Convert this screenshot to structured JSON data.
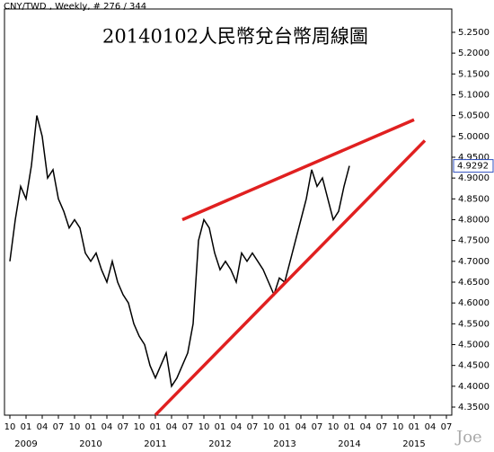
{
  "chart_data": {
    "type": "line",
    "header": "CNY/TWD , Weekly, # 276 / 344",
    "title": "20140102人民幣兌台幣周線圖",
    "watermark": "Joe",
    "color": "#000000",
    "x": [
      "2008-10",
      "2008-11",
      "2008-12",
      "2009-01",
      "2009-02",
      "2009-03",
      "2009-04",
      "2009-05",
      "2009-06",
      "2009-07",
      "2009-08",
      "2009-09",
      "2009-10",
      "2009-11",
      "2009-12",
      "2010-01",
      "2010-02",
      "2010-03",
      "2010-04",
      "2010-05",
      "2010-06",
      "2010-07",
      "2010-08",
      "2010-09",
      "2010-10",
      "2010-11",
      "2010-12",
      "2011-01",
      "2011-02",
      "2011-03",
      "2011-04",
      "2011-05",
      "2011-06",
      "2011-07",
      "2011-08",
      "2011-09",
      "2011-10",
      "2011-11",
      "2011-12",
      "2012-01",
      "2012-02",
      "2012-03",
      "2012-04",
      "2012-05",
      "2012-06",
      "2012-07",
      "2012-08",
      "2012-09",
      "2012-10",
      "2012-11",
      "2012-12",
      "2013-01",
      "2013-02",
      "2013-03",
      "2013-04",
      "2013-05",
      "2013-06",
      "2013-07",
      "2013-08",
      "2013-09",
      "2013-10",
      "2013-11",
      "2013-12",
      "2014-01"
    ],
    "values": [
      4.7,
      4.8,
      4.88,
      4.85,
      4.93,
      5.05,
      5.0,
      4.9,
      4.92,
      4.85,
      4.82,
      4.78,
      4.8,
      4.78,
      4.72,
      4.7,
      4.72,
      4.68,
      4.65,
      4.7,
      4.65,
      4.62,
      4.6,
      4.55,
      4.52,
      4.5,
      4.45,
      4.42,
      4.45,
      4.48,
      4.4,
      4.42,
      4.45,
      4.48,
      4.55,
      4.75,
      4.8,
      4.78,
      4.72,
      4.68,
      4.7,
      4.68,
      4.65,
      4.72,
      4.7,
      4.72,
      4.7,
      4.68,
      4.65,
      4.62,
      4.66,
      4.65,
      4.7,
      4.75,
      4.8,
      4.85,
      4.92,
      4.88,
      4.9,
      4.85,
      4.8,
      4.82,
      4.88,
      4.9292
    ],
    "last_value": 4.9292,
    "xlim": [
      "2008-09",
      "2015-08"
    ],
    "xticks": [
      {
        "value": "2008-10",
        "label": "10"
      },
      {
        "value": "2009-01",
        "label": "01"
      },
      {
        "value": "2009-04",
        "label": "04"
      },
      {
        "value": "2009-07",
        "label": "07"
      },
      {
        "value": "2009-10",
        "label": "10"
      },
      {
        "value": "2010-01",
        "label": "01"
      },
      {
        "value": "2010-04",
        "label": "04"
      },
      {
        "value": "2010-07",
        "label": "07"
      },
      {
        "value": "2010-10",
        "label": "10"
      },
      {
        "value": "2011-01",
        "label": "01"
      },
      {
        "value": "2011-04",
        "label": "04"
      },
      {
        "value": "2011-07",
        "label": "07"
      },
      {
        "value": "2011-10",
        "label": "10"
      },
      {
        "value": "2012-01",
        "label": "01"
      },
      {
        "value": "2012-04",
        "label": "04"
      },
      {
        "value": "2012-07",
        "label": "07"
      },
      {
        "value": "2012-10",
        "label": "10"
      },
      {
        "value": "2013-01",
        "label": "01"
      },
      {
        "value": "2013-04",
        "label": "04"
      },
      {
        "value": "2013-07",
        "label": "07"
      },
      {
        "value": "2013-10",
        "label": "10"
      },
      {
        "value": "2014-01",
        "label": "01"
      },
      {
        "value": "2014-04",
        "label": "04"
      },
      {
        "value": "2014-07",
        "label": "07"
      },
      {
        "value": "2014-10",
        "label": "10"
      },
      {
        "value": "2015-01",
        "label": "01"
      },
      {
        "value": "2015-04",
        "label": "04"
      },
      {
        "value": "2015-07",
        "label": "07"
      }
    ],
    "year_labels": [
      {
        "value": "2009-01",
        "label": "2009"
      },
      {
        "value": "2010-01",
        "label": "2010"
      },
      {
        "value": "2011-01",
        "label": "2011"
      },
      {
        "value": "2012-01",
        "label": "2012"
      },
      {
        "value": "2013-01",
        "label": "2013"
      },
      {
        "value": "2014-01",
        "label": "2014"
      },
      {
        "value": "2015-01",
        "label": "2015"
      }
    ],
    "ylim": [
      4.3306,
      5.306
    ],
    "yticks": [
      {
        "value": 4.35,
        "label": "4.3500"
      },
      {
        "value": 4.4,
        "label": "4.4000"
      },
      {
        "value": 4.45,
        "label": "4.4500"
      },
      {
        "value": 4.5,
        "label": "4.5000"
      },
      {
        "value": 4.55,
        "label": "4.5500"
      },
      {
        "value": 4.6,
        "label": "4.6000"
      },
      {
        "value": 4.65,
        "label": "4.6500"
      },
      {
        "value": 4.7,
        "label": "4.7000"
      },
      {
        "value": 4.75,
        "label": "4.7500"
      },
      {
        "value": 4.8,
        "label": "4.8000"
      },
      {
        "value": 4.85,
        "label": "4.8500"
      },
      {
        "value": 4.9,
        "label": "4.9000"
      },
      {
        "value": 4.95,
        "label": "4.9500"
      },
      {
        "value": 5.0,
        "label": "5.0000"
      },
      {
        "value": 5.05,
        "label": "5.0500"
      },
      {
        "value": 5.1,
        "label": "5.1000"
      },
      {
        "value": 5.15,
        "label": "5.1500"
      },
      {
        "value": 5.2,
        "label": "5.2000"
      },
      {
        "value": 5.25,
        "label": "5.2500"
      }
    ],
    "trendline_color": "#e02020",
    "trendlines": [
      {
        "x": [
          "2011-06",
          "2015-01"
        ],
        "y": [
          4.8,
          5.04
        ]
      },
      {
        "x": [
          "2011-01",
          "2015-03"
        ],
        "y": [
          4.331,
          4.99
        ]
      }
    ]
  }
}
